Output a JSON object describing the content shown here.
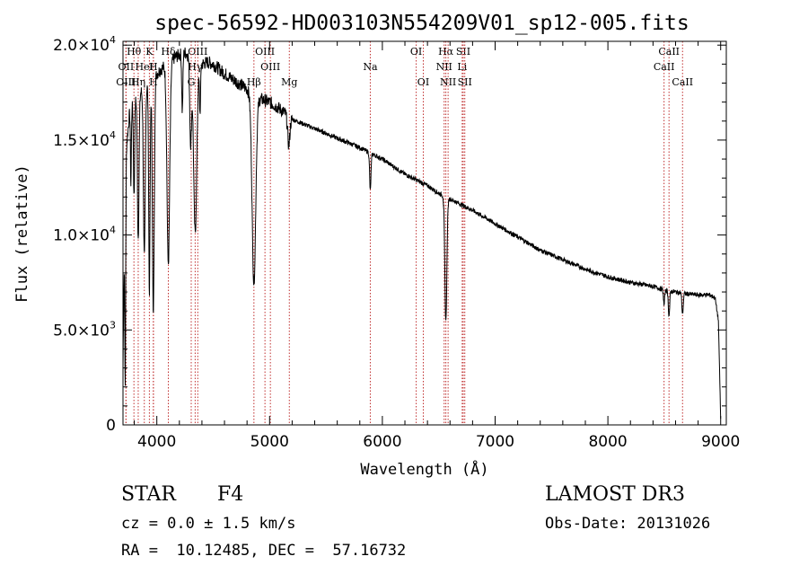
{
  "chart_data": {
    "type": "line",
    "title": "spec-56592-HD003103N554209V01_sp12-005.fits",
    "xlabel": "Wavelength (Å)",
    "ylabel": "Flux (relative)",
    "xlim": [
      3700,
      9050
    ],
    "ylim": [
      0,
      20200
    ],
    "x_ticks": [
      4000,
      5000,
      6000,
      7000,
      8000,
      9000
    ],
    "x_tick_labels": [
      "4000",
      "5000",
      "6000",
      "7000",
      "8000",
      "9000"
    ],
    "y_ticks": [
      0,
      5000,
      10000,
      15000,
      20000
    ],
    "y_tick_labels": [
      {
        "mantissa": "0",
        "exp": ""
      },
      {
        "mantissa": "5.0×10",
        "exp": "3"
      },
      {
        "mantissa": "1.0×10",
        "exp": "4"
      },
      {
        "mantissa": "1.5×10",
        "exp": "4"
      },
      {
        "mantissa": "2.0×10",
        "exp": "4"
      }
    ],
    "series": [
      {
        "name": "spectrum",
        "continuum_x": [
          3700,
          3720,
          3760,
          3800,
          3850,
          3900,
          3950,
          4000,
          4050,
          4100,
          4150,
          4200,
          4250,
          4300,
          4350,
          4400,
          4450,
          4500,
          4600,
          4700,
          4800,
          4850,
          4900,
          4950,
          5000,
          5100,
          5200,
          5400,
          5600,
          5800,
          6000,
          6200,
          6400,
          6500,
          6600,
          6700,
          6800,
          7000,
          7200,
          7400,
          7600,
          7800,
          8000,
          8200,
          8400,
          8500,
          8600,
          8700,
          8800,
          8900,
          8950,
          8980,
          9000
        ],
        "continuum_y": [
          3000,
          14000,
          16500,
          17000,
          17500,
          17800,
          18000,
          18500,
          18800,
          19000,
          19300,
          19500,
          19600,
          19400,
          19000,
          19000,
          19100,
          19000,
          18500,
          18100,
          17700,
          17300,
          17200,
          17100,
          17000,
          16600,
          16100,
          15600,
          15100,
          14600,
          14000,
          13200,
          12600,
          12200,
          11900,
          11600,
          11300,
          10600,
          9900,
          9200,
          8700,
          8200,
          7800,
          7500,
          7300,
          7100,
          7000,
          6900,
          6850,
          6850,
          6700,
          5500,
          300
        ],
        "absorption_lines": [
          {
            "center": 3720,
            "depth": 12000,
            "width": 4
          },
          {
            "center": 3770,
            "depth": 4000,
            "width": 4
          },
          {
            "center": 3798,
            "depth": 5000,
            "width": 5
          },
          {
            "center": 3835,
            "depth": 7500,
            "width": 7
          },
          {
            "center": 3889,
            "depth": 9000,
            "width": 8
          },
          {
            "center": 3934,
            "depth": 11000,
            "width": 6
          },
          {
            "center": 3969,
            "depth": 12500,
            "width": 8
          },
          {
            "center": 4102,
            "depth": 10500,
            "width": 12
          },
          {
            "center": 4226,
            "depth": 3000,
            "width": 5
          },
          {
            "center": 4300,
            "depth": 4500,
            "width": 8
          },
          {
            "center": 4340,
            "depth": 9000,
            "width": 14
          },
          {
            "center": 4383,
            "depth": 2500,
            "width": 5
          },
          {
            "center": 4861,
            "depth": 9800,
            "width": 16
          },
          {
            "center": 5170,
            "depth": 1500,
            "width": 10
          },
          {
            "center": 5893,
            "depth": 2000,
            "width": 6
          },
          {
            "center": 6563,
            "depth": 6500,
            "width": 9
          },
          {
            "center": 8498,
            "depth": 800,
            "width": 5
          },
          {
            "center": 8542,
            "depth": 1300,
            "width": 6
          },
          {
            "center": 8662,
            "depth": 1100,
            "width": 6
          }
        ],
        "noise_amplitude": 350
      }
    ],
    "line_markers": [
      {
        "label": "Hθ",
        "wavelength": 3797,
        "row": 0
      },
      {
        "label": "K",
        "wavelength": 3934,
        "row": 0
      },
      {
        "label": "Hδ",
        "wavelength": 4102,
        "row": 0
      },
      {
        "label": "OIII",
        "wavelength": 4363,
        "row": 0
      },
      {
        "label": "OIII",
        "wavelength": 4959,
        "row": 0
      },
      {
        "label": "OI",
        "wavelength": 6300,
        "row": 0
      },
      {
        "label": "Hα",
        "wavelength": 6563,
        "row": 0
      },
      {
        "label": "SII",
        "wavelength": 6717,
        "row": 0
      },
      {
        "label": "CaII",
        "wavelength": 8542,
        "row": 0
      },
      {
        "label": "OII",
        "wavelength": 3727,
        "row": 1
      },
      {
        "label": "HeI",
        "wavelength": 3889,
        "row": 1
      },
      {
        "label": "H",
        "wavelength": 3969,
        "row": 1
      },
      {
        "label": "Hγ",
        "wavelength": 4340,
        "row": 1
      },
      {
        "label": "OIII",
        "wavelength": 5007,
        "row": 1
      },
      {
        "label": "NII",
        "wavelength": 6548,
        "row": 1
      },
      {
        "label": "Li",
        "wavelength": 6708,
        "row": 1
      },
      {
        "label": "CaII",
        "wavelength": 8498,
        "row": 1
      },
      {
        "label": "OIII",
        "wavelength": 3726,
        "row": 2
      },
      {
        "label": "Hη",
        "wavelength": 3835,
        "row": 2
      },
      {
        "label": "H",
        "wavelength": 3970,
        "row": 2
      },
      {
        "label": "G",
        "wavelength": 4305,
        "row": 2
      },
      {
        "label": "Hβ",
        "wavelength": 4861,
        "row": 2
      },
      {
        "label": "Mg",
        "wavelength": 5175,
        "row": 2
      },
      {
        "label": "Na",
        "wavelength": 5893,
        "row": 1
      },
      {
        "label": "OI",
        "wavelength": 6363,
        "row": 2
      },
      {
        "label": "NII",
        "wavelength": 6583,
        "row": 2
      },
      {
        "label": "SII",
        "wavelength": 6731,
        "row": 2
      },
      {
        "label": "CaII",
        "wavelength": 8662,
        "row": 2
      }
    ],
    "marker_color": "#c03030"
  },
  "info": {
    "object_type": "STAR",
    "subclass": "F4",
    "survey": "LAMOST DR3",
    "redshift_text": "cz = 0.0 ± 1.5 km/s",
    "obs_date_text": "Obs-Date: 20131026",
    "coords_text": "RA =  10.12485, DEC =  57.16732"
  }
}
